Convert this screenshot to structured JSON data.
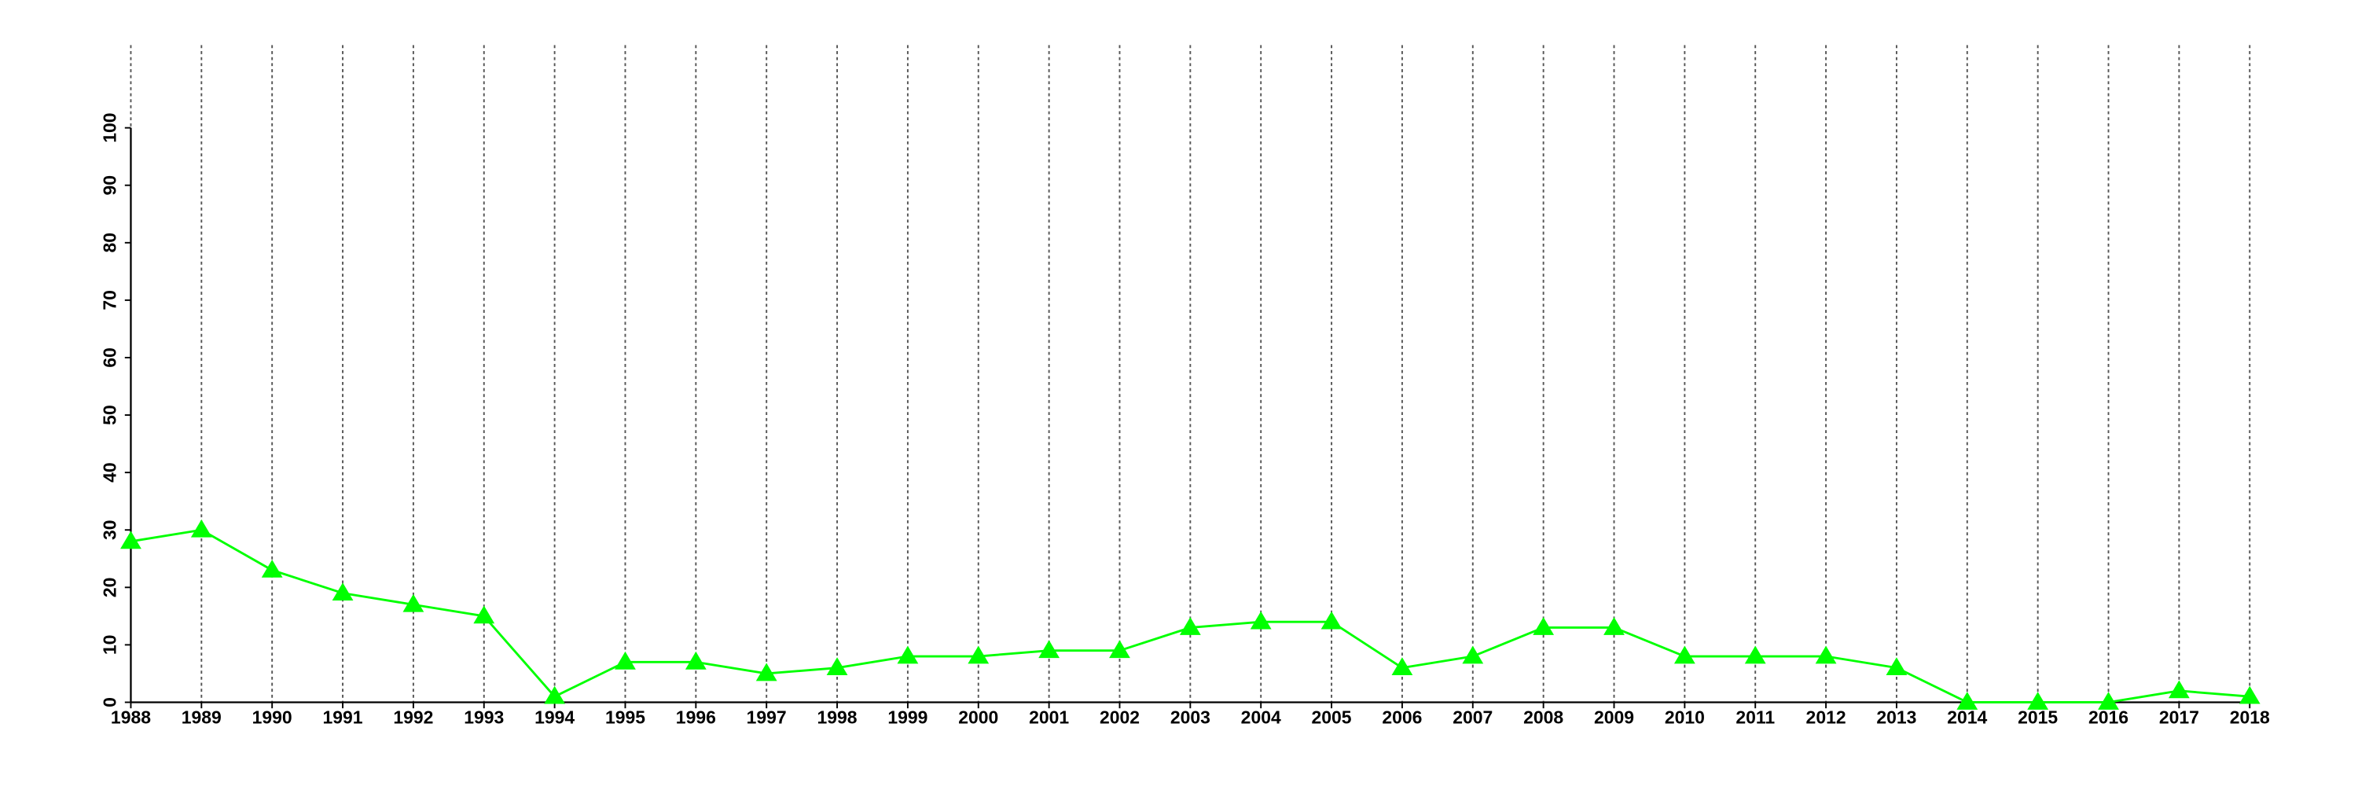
{
  "chart_data": {
    "type": "line",
    "x": [
      1988,
      1989,
      1990,
      1991,
      1992,
      1993,
      1994,
      1995,
      1996,
      1997,
      1998,
      1999,
      2000,
      2001,
      2002,
      2003,
      2004,
      2005,
      2006,
      2007,
      2008,
      2009,
      2010,
      2011,
      2012,
      2013,
      2014,
      2015,
      2016,
      2017,
      2018
    ],
    "values": [
      28,
      30,
      23,
      19,
      17,
      15,
      1,
      7,
      7,
      5,
      6,
      8,
      8,
      9,
      9,
      13,
      14,
      14,
      6,
      8,
      13,
      13,
      8,
      8,
      8,
      6,
      0,
      0,
      0,
      2,
      1
    ],
    "color": "#00ff00",
    "marker": "triangle",
    "xlim": [
      1988,
      2018
    ],
    "xticks": [
      1988,
      1989,
      1990,
      1991,
      1992,
      1993,
      1994,
      1995,
      1996,
      1997,
      1998,
      1999,
      2000,
      2001,
      2002,
      2003,
      2004,
      2005,
      2006,
      2007,
      2008,
      2009,
      2010,
      2011,
      2012,
      2013,
      2014,
      2015,
      2016,
      2017,
      2018
    ],
    "ylim": [
      0,
      100
    ],
    "yticks": [
      0,
      10,
      20,
      30,
      40,
      50,
      60,
      70,
      80,
      90,
      100
    ],
    "grid": "x"
  }
}
